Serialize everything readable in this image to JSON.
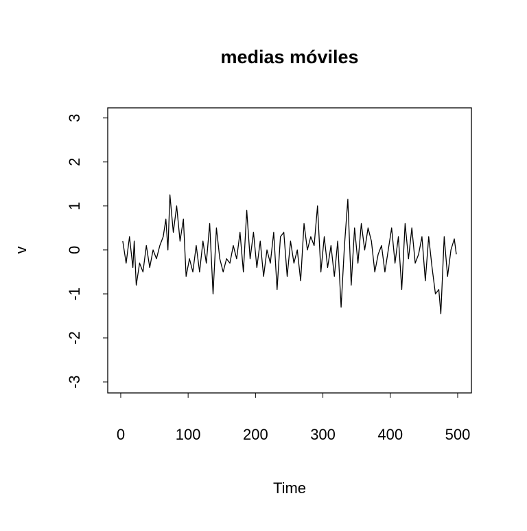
{
  "chart_data": {
    "type": "line",
    "title": "medias móviles",
    "x_label": "Time",
    "y_label": "v",
    "x": [
      3,
      8,
      13,
      18,
      20,
      23,
      28,
      33,
      38,
      43,
      48,
      53,
      58,
      63,
      67,
      70,
      73,
      78,
      83,
      88,
      93,
      97,
      102,
      107,
      112,
      117,
      122,
      127,
      132,
      137,
      142,
      147,
      152,
      157,
      162,
      167,
      172,
      177,
      182,
      187,
      192,
      197,
      202,
      207,
      212,
      217,
      222,
      227,
      232,
      237,
      242,
      247,
      252,
      257,
      262,
      267,
      272,
      277,
      282,
      287,
      292,
      297,
      302,
      307,
      312,
      317,
      322,
      327,
      332,
      337,
      342,
      347,
      352,
      357,
      362,
      367,
      372,
      377,
      382,
      387,
      392,
      397,
      402,
      407,
      412,
      417,
      422,
      427,
      432,
      437,
      442,
      447,
      452,
      457,
      462,
      467,
      472,
      475,
      480,
      485,
      490,
      495,
      498
    ],
    "series": [
      {
        "name": "v",
        "color": "#000000",
        "values": [
          0.2,
          -0.3,
          0.3,
          -0.4,
          0.2,
          -0.8,
          -0.3,
          -0.5,
          0.1,
          -0.4,
          0.0,
          -0.2,
          0.1,
          0.3,
          0.7,
          0.0,
          1.25,
          0.4,
          1.0,
          0.2,
          0.7,
          -0.6,
          -0.2,
          -0.5,
          0.1,
          -0.5,
          0.2,
          -0.3,
          0.6,
          -1.0,
          0.5,
          -0.2,
          -0.5,
          -0.2,
          -0.3,
          0.1,
          -0.2,
          0.4,
          -0.5,
          0.9,
          -0.2,
          0.4,
          -0.4,
          0.2,
          -0.6,
          0.0,
          -0.3,
          0.4,
          -0.9,
          0.3,
          0.4,
          -0.6,
          0.2,
          -0.3,
          0.0,
          -0.7,
          0.6,
          0.0,
          0.3,
          0.1,
          1.0,
          -0.5,
          0.3,
          -0.4,
          0.1,
          -0.6,
          0.2,
          -1.3,
          0.1,
          1.15,
          -0.8,
          0.5,
          -0.3,
          0.6,
          0.0,
          0.5,
          0.2,
          -0.5,
          -0.1,
          0.1,
          -0.5,
          0.0,
          0.5,
          -0.3,
          0.3,
          -0.9,
          0.6,
          -0.2,
          0.5,
          -0.3,
          -0.1,
          0.3,
          -0.7,
          0.3,
          -0.4,
          -1.0,
          -0.9,
          -1.45,
          0.3,
          -0.6,
          0.0,
          0.25,
          -0.1
        ]
      }
    ],
    "xlim": [
      -19.3,
      520.4
    ],
    "ylim": [
      -3.25,
      3.23
    ],
    "xticks": [
      0,
      100,
      200,
      300,
      400,
      500
    ],
    "yticks": [
      -3,
      -2,
      -1,
      0,
      1,
      2,
      3
    ]
  }
}
